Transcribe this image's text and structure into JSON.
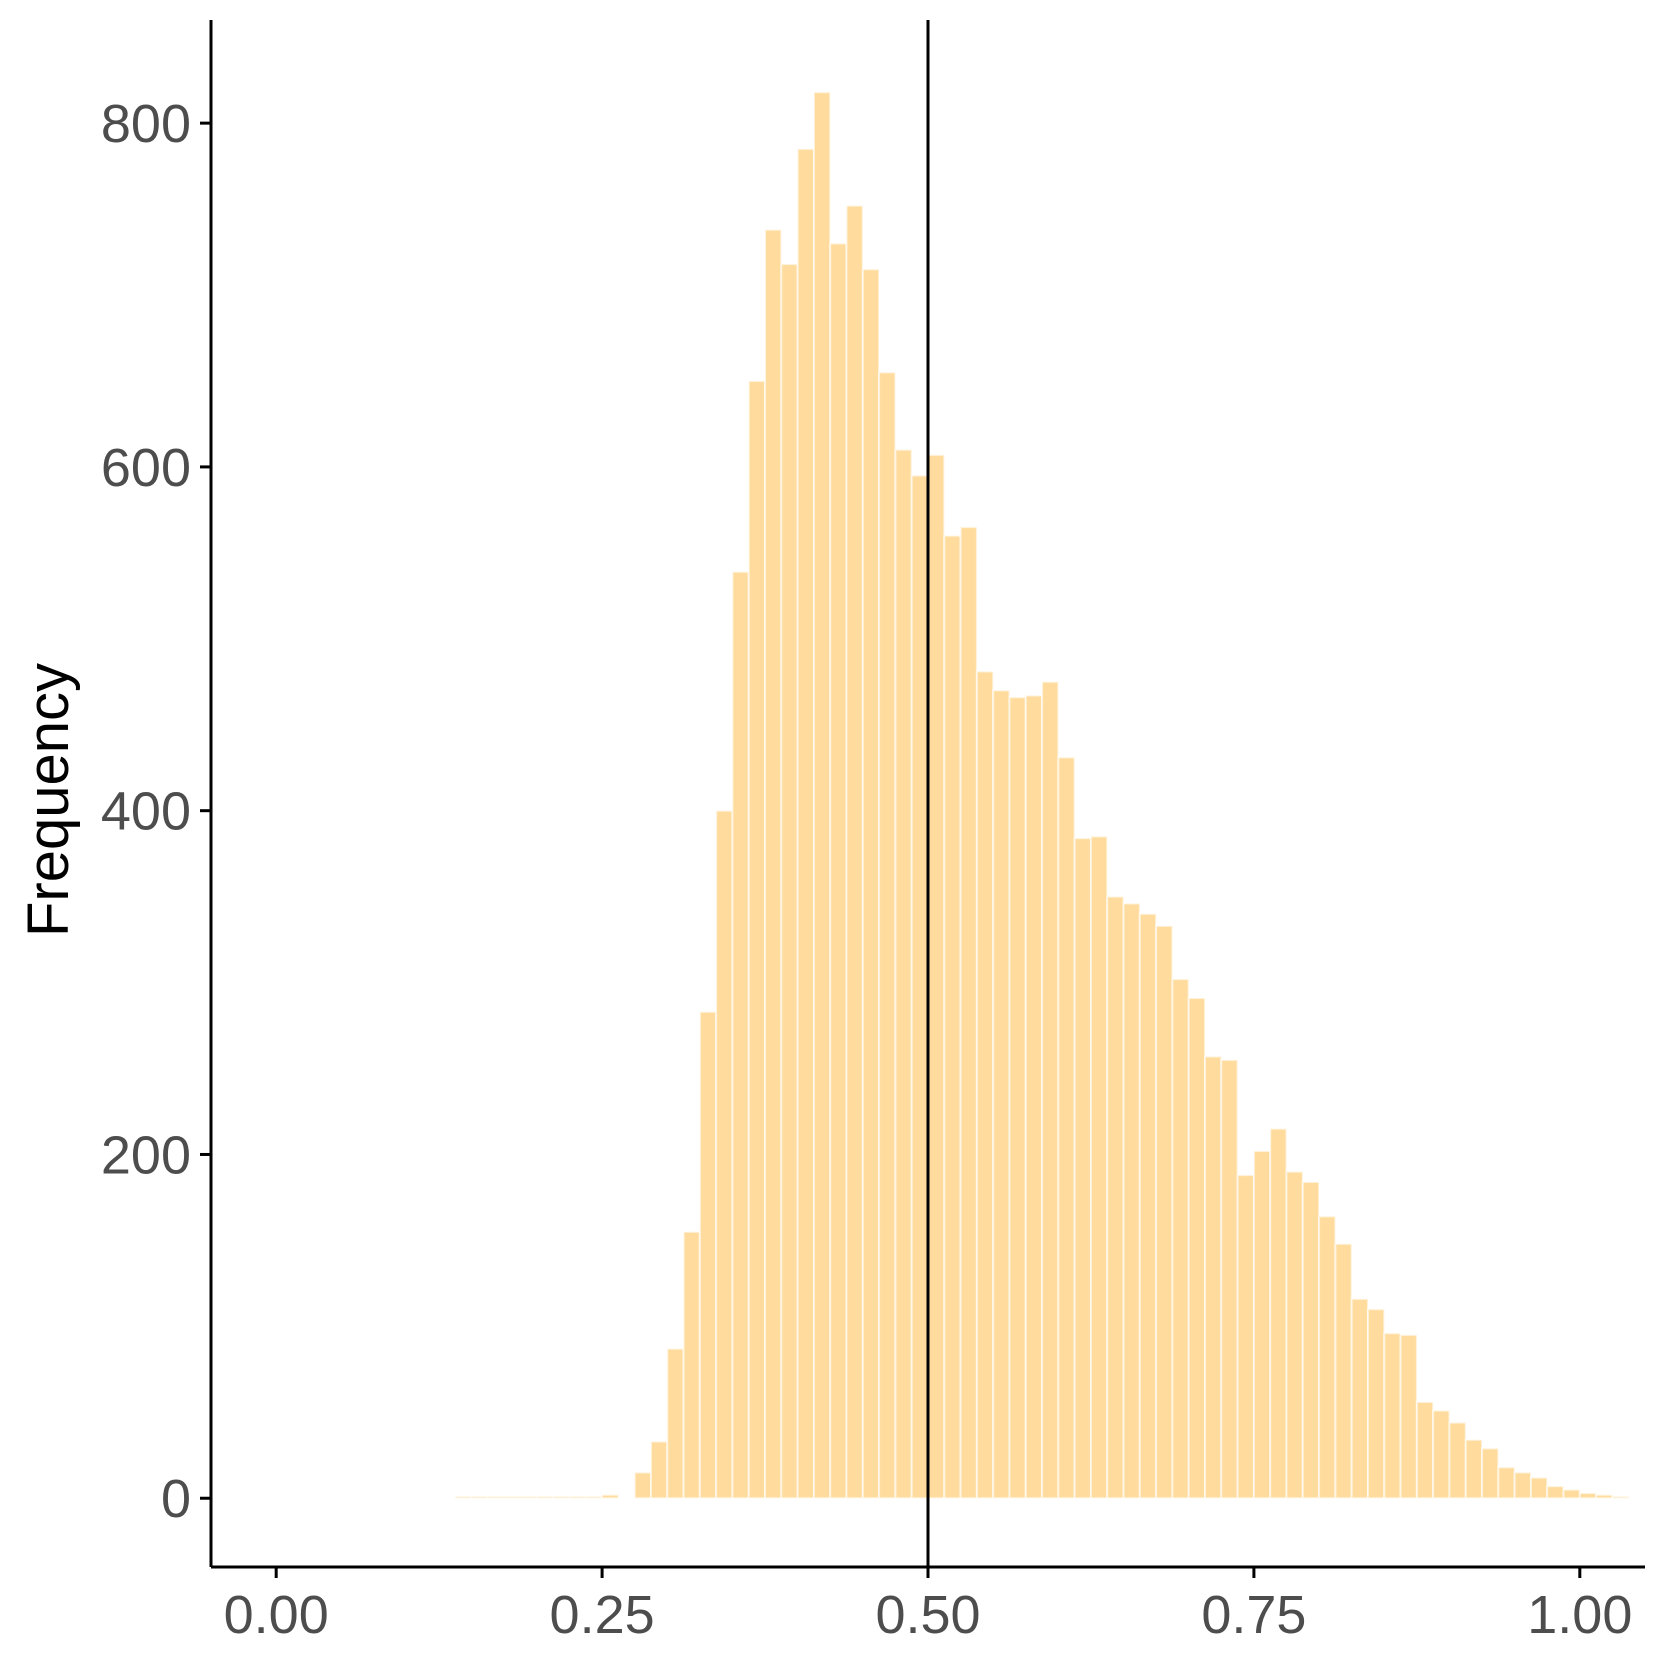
{
  "chart_data": {
    "type": "bar",
    "subtype": "overlaid-histogram",
    "ylabel": "Frequency",
    "xlabel": "",
    "xlim": [
      -0.05,
      1.05
    ],
    "ylim": [
      -40,
      860
    ],
    "x_ticks": [
      0.0,
      0.25,
      0.5,
      0.75,
      1.0
    ],
    "x_tick_labels": [
      "0.00",
      "0.25",
      "0.50",
      "0.75",
      "1.00"
    ],
    "y_ticks": [
      0,
      200,
      400,
      600,
      800
    ],
    "y_tick_labels": [
      "0",
      "200",
      "400",
      "600",
      "800"
    ],
    "reference_line_x": 0.5,
    "bin_width": 0.0125,
    "bin_start": 0.0,
    "grid": false,
    "legend": "none",
    "series": [
      {
        "color": "#ffc04d",
        "opacity": 0.55,
        "values": [
          0,
          0,
          0,
          0,
          0,
          0,
          0,
          0,
          0,
          0,
          0,
          1,
          1,
          1,
          1,
          1,
          1,
          1,
          1,
          1,
          2,
          0,
          15,
          33,
          87,
          155,
          283,
          400,
          539,
          650,
          738,
          718,
          785,
          818,
          730,
          752,
          715,
          655,
          610,
          595,
          607,
          560,
          565,
          481,
          470,
          466,
          467,
          475,
          431,
          384,
          385,
          350,
          346,
          340,
          333,
          302,
          291,
          257,
          255,
          188,
          202,
          215,
          190,
          184,
          164,
          148,
          116,
          110,
          96,
          95,
          56,
          51,
          44,
          34,
          29,
          18,
          15,
          12,
          7,
          5,
          3,
          2,
          1
        ]
      },
      {
        "color": "#6666ff",
        "opacity": 0.55,
        "values": [
          0,
          0,
          0,
          0,
          0,
          0,
          0,
          0,
          0,
          0,
          0,
          0,
          0,
          0,
          0,
          0,
          0,
          0,
          0,
          0,
          0,
          0,
          0,
          0,
          0,
          0,
          0,
          0,
          0,
          0,
          0,
          0,
          0,
          0,
          0,
          0,
          0,
          0,
          0,
          0,
          0,
          0,
          0,
          0,
          0,
          0,
          0,
          0,
          0,
          0,
          0,
          0,
          0,
          0,
          0,
          0,
          0,
          0,
          0,
          0,
          0,
          0,
          0,
          0,
          0,
          0,
          0,
          0,
          0,
          0,
          0,
          0,
          0,
          0,
          0,
          0,
          0,
          0,
          0,
          0,
          0,
          0,
          0
        ]
      }
    ]
  }
}
